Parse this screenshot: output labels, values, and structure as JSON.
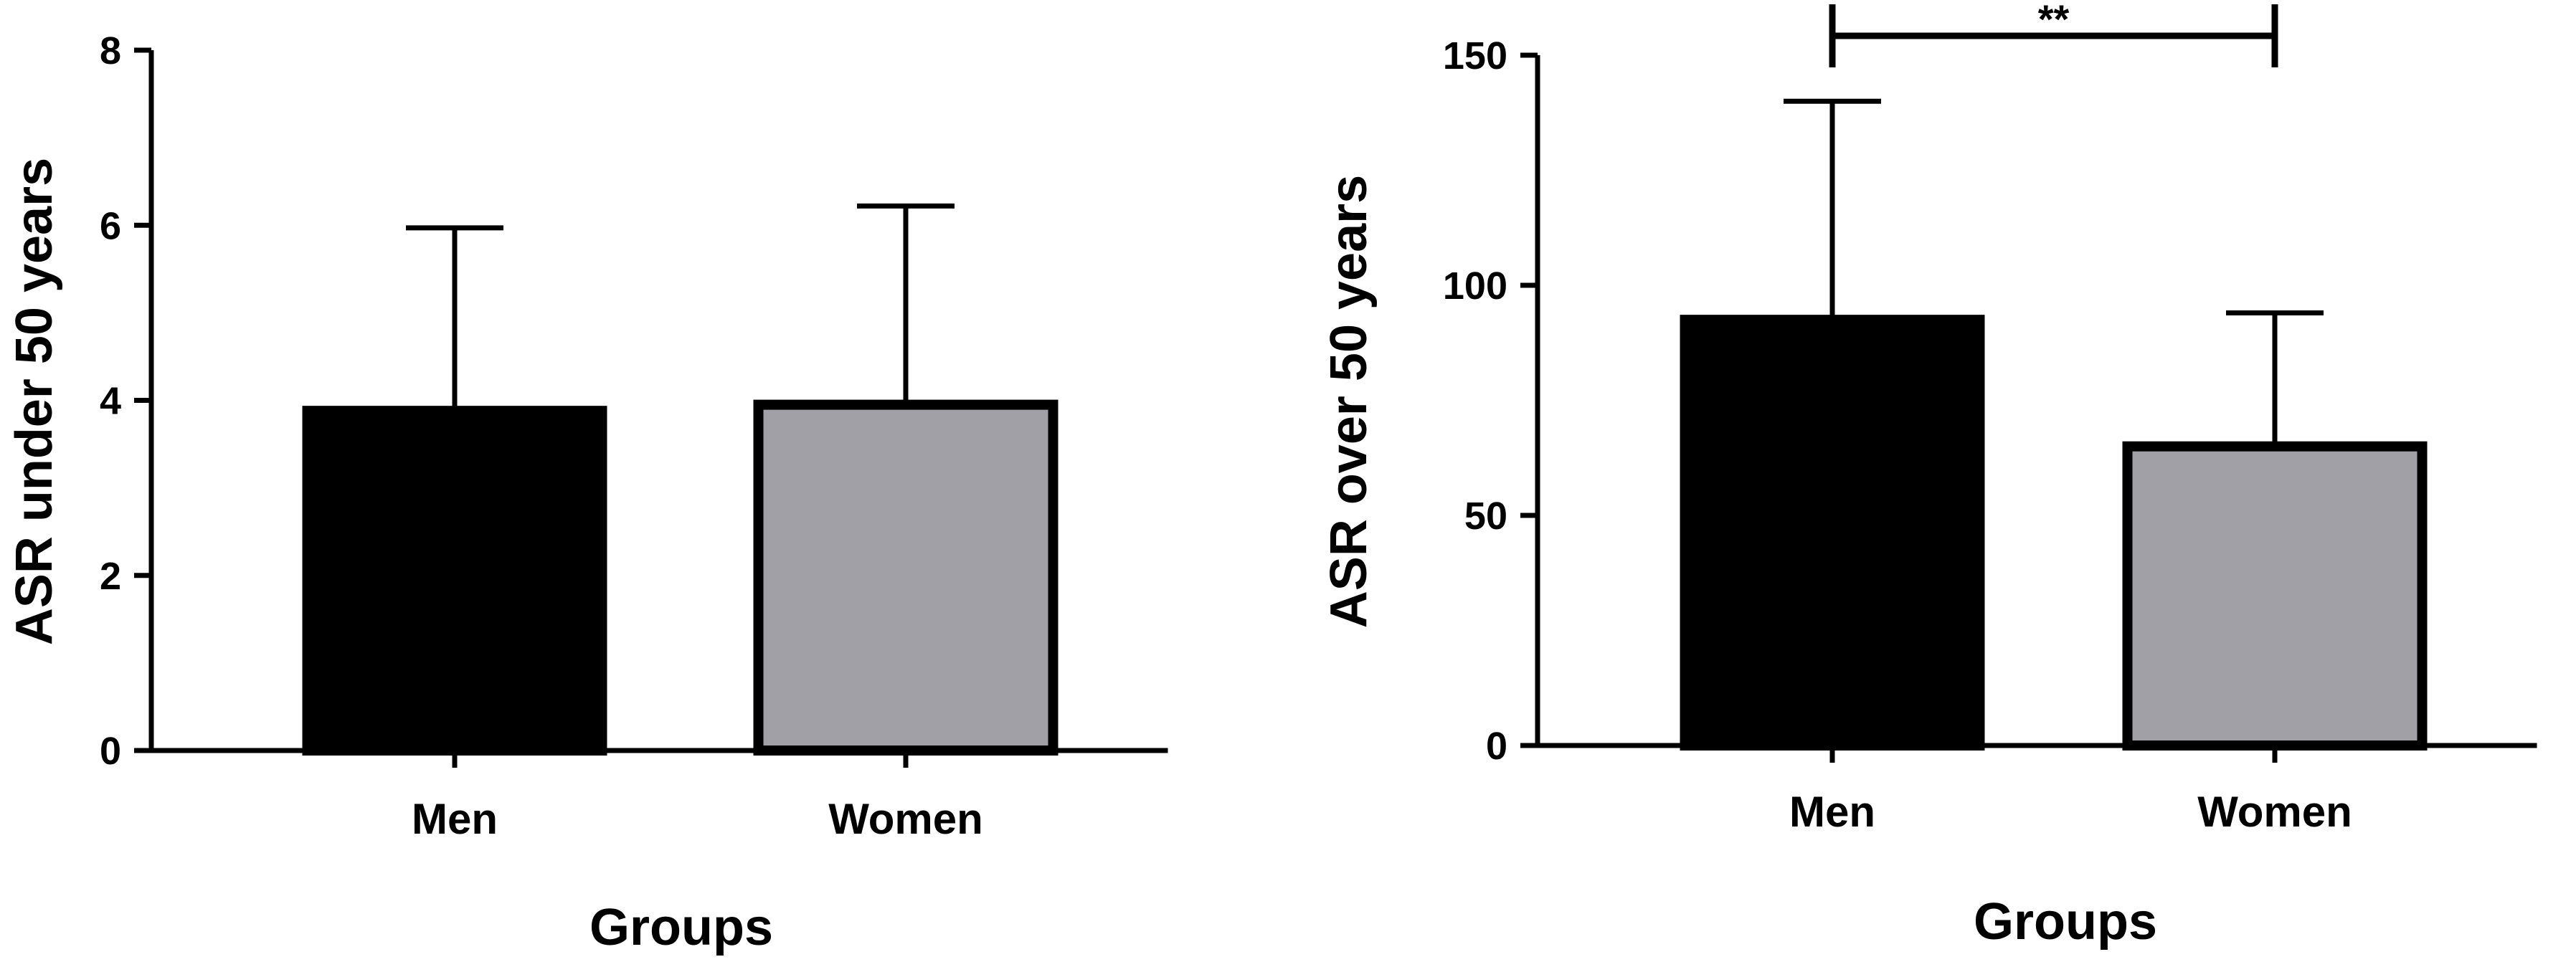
{
  "chart_data": [
    {
      "type": "bar",
      "categories": [
        "Men",
        "Women"
      ],
      "values": [
        3.88,
        3.95
      ],
      "error_upper": [
        5.97,
        6.22
      ],
      "colors": [
        "#000000",
        "#a0a0a6"
      ],
      "xlabel": "Groups",
      "ylabel": "ASR under 50 years",
      "ylim": [
        0,
        8
      ],
      "yticks": [
        0,
        2,
        4,
        6,
        8
      ],
      "significance": null
    },
    {
      "type": "bar",
      "categories": [
        "Men",
        "Women"
      ],
      "values": [
        92.5,
        65.0
      ],
      "error_upper": [
        140.0,
        94.0
      ],
      "colors": [
        "#000000",
        "#a0a0a6"
      ],
      "xlabel": "Groups",
      "ylabel": "ASR over 50 years",
      "ylim": [
        0,
        150
      ],
      "yticks": [
        0,
        50,
        100,
        150
      ],
      "significance": {
        "between": [
          "Men",
          "Women"
        ],
        "label": "**"
      }
    }
  ]
}
